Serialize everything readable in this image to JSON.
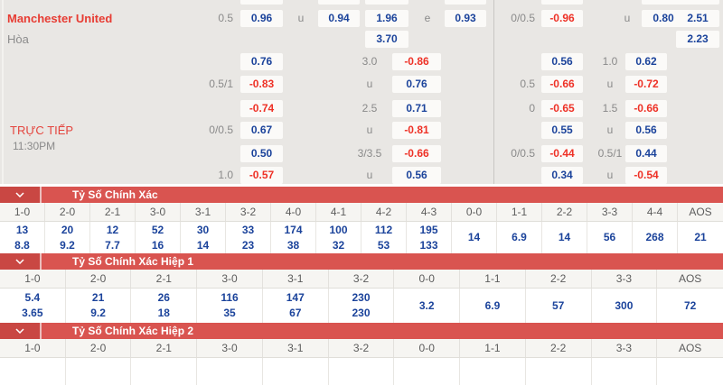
{
  "colors": {
    "background_gray": "#e9e7e4",
    "odds_box_bg": "#fbfaf8",
    "odds_blue": "#1b439b",
    "odds_red": "#ee3126",
    "team_red": "#e73c33",
    "section_bar_red": "#d95450",
    "section_chevron_box_red": "#c94743"
  },
  "match": {
    "home_team": "Manchester United",
    "draw_label": "Hòa",
    "live_label": "TRỰC TIẾP",
    "kickoff_time": "11:30PM"
  },
  "odds": {
    "rows": [
      {
        "cells": [
          {
            "col": "a-box1",
            "text": "",
            "style": "empty"
          },
          {
            "col": "a-box2a",
            "text": "",
            "style": "empty"
          },
          {
            "col": "a-box3",
            "text": "",
            "style": "empty"
          },
          {
            "col": "a-box4",
            "text": "",
            "style": "empty"
          },
          {
            "col": "b-box1",
            "text": "",
            "style": "empty"
          },
          {
            "col": "b-box2a",
            "text": "",
            "style": "empty"
          },
          {
            "col": "b-box3",
            "text": "",
            "style": "empty"
          }
        ]
      },
      {
        "cells": [
          {
            "col": "a-hcap",
            "text": "0.5",
            "style": "label"
          },
          {
            "col": "a-box1",
            "text": "0.96",
            "style": "blue"
          },
          {
            "col": "a-mid1",
            "text": "u",
            "style": "label"
          },
          {
            "col": "a-box2a",
            "text": "0.94",
            "style": "blue"
          },
          {
            "col": "a-box3",
            "text": "1.96",
            "style": "blue"
          },
          {
            "col": "a-mid-e",
            "text": "e",
            "style": "label"
          },
          {
            "col": "a-box4",
            "text": "0.93",
            "style": "blue"
          },
          {
            "col": "b-hcap",
            "text": "0/0.5",
            "style": "label"
          },
          {
            "col": "b-box1",
            "text": "-0.96",
            "style": "red"
          },
          {
            "col": "b-mid1",
            "text": "u",
            "style": "label"
          },
          {
            "col": "b-box2a",
            "text": "0.80",
            "style": "blue"
          },
          {
            "col": "b-box3",
            "text": "2.51",
            "style": "blue"
          }
        ]
      },
      {
        "cells": [
          {
            "col": "a-box3",
            "text": "3.70",
            "style": "blue"
          },
          {
            "col": "b-box3",
            "text": "2.23",
            "style": "blue"
          }
        ]
      },
      {
        "cells": [
          {
            "col": "a-box1",
            "text": "0.76",
            "style": "blue"
          },
          {
            "col": "a-mid2",
            "text": "3.0",
            "style": "label"
          },
          {
            "col": "a-box2b",
            "text": "-0.86",
            "style": "red"
          },
          {
            "col": "b-box1",
            "text": "0.56",
            "style": "blue"
          },
          {
            "col": "b-mid2",
            "text": "1.0",
            "style": "label"
          },
          {
            "col": "b-box2b",
            "text": "0.62",
            "style": "blue"
          }
        ]
      },
      {
        "cells": [
          {
            "col": "a-hcap",
            "text": "0.5/1",
            "style": "label"
          },
          {
            "col": "a-box1",
            "text": "-0.83",
            "style": "red"
          },
          {
            "col": "a-mid2",
            "text": "u",
            "style": "label"
          },
          {
            "col": "a-box2b",
            "text": "0.76",
            "style": "blue"
          },
          {
            "col": "b-hcap",
            "text": "0.5",
            "style": "label"
          },
          {
            "col": "b-box1",
            "text": "-0.66",
            "style": "red"
          },
          {
            "col": "b-mid2",
            "text": "u",
            "style": "label"
          },
          {
            "col": "b-box2b",
            "text": "-0.72",
            "style": "red"
          }
        ]
      },
      {
        "cells": [
          {
            "col": "a-box1",
            "text": "-0.74",
            "style": "red"
          },
          {
            "col": "a-mid2",
            "text": "2.5",
            "style": "label"
          },
          {
            "col": "a-box2b",
            "text": "0.71",
            "style": "blue"
          },
          {
            "col": "b-hcap",
            "text": "0",
            "style": "label"
          },
          {
            "col": "b-box1",
            "text": "-0.65",
            "style": "red"
          },
          {
            "col": "b-mid2",
            "text": "1.5",
            "style": "label"
          },
          {
            "col": "b-box2b",
            "text": "-0.66",
            "style": "red"
          }
        ]
      },
      {
        "cells": [
          {
            "col": "a-hcap",
            "text": "0/0.5",
            "style": "label"
          },
          {
            "col": "a-box1",
            "text": "0.67",
            "style": "blue"
          },
          {
            "col": "a-mid2",
            "text": "u",
            "style": "label"
          },
          {
            "col": "a-box2b",
            "text": "-0.81",
            "style": "red"
          },
          {
            "col": "b-box1",
            "text": "0.55",
            "style": "blue"
          },
          {
            "col": "b-mid2",
            "text": "u",
            "style": "label"
          },
          {
            "col": "b-box2b",
            "text": "0.56",
            "style": "blue"
          }
        ]
      },
      {
        "cells": [
          {
            "col": "a-box1",
            "text": "0.50",
            "style": "blue"
          },
          {
            "col": "a-mid2",
            "text": "3/3.5",
            "style": "label"
          },
          {
            "col": "a-box2b",
            "text": "-0.66",
            "style": "red"
          },
          {
            "col": "b-hcap",
            "text": "0/0.5",
            "style": "label"
          },
          {
            "col": "b-box1",
            "text": "-0.44",
            "style": "red"
          },
          {
            "col": "b-mid2",
            "text": "0.5/1",
            "style": "label"
          },
          {
            "col": "b-box2b",
            "text": "0.44",
            "style": "blue"
          }
        ]
      },
      {
        "cells": [
          {
            "col": "a-hcap",
            "text": "1.0",
            "style": "label"
          },
          {
            "col": "a-box1",
            "text": "-0.57",
            "style": "red"
          },
          {
            "col": "a-mid2",
            "text": "u",
            "style": "label"
          },
          {
            "col": "a-box2b",
            "text": "0.56",
            "style": "blue"
          },
          {
            "col": "b-box1",
            "text": "0.34",
            "style": "blue"
          },
          {
            "col": "b-mid2",
            "text": "u",
            "style": "label"
          },
          {
            "col": "b-box2b",
            "text": "-0.54",
            "style": "red"
          }
        ]
      }
    ]
  },
  "sections": [
    {
      "title": "Tỷ Số Chính Xác",
      "columns": [
        "1-0",
        "2-0",
        "2-1",
        "3-0",
        "3-1",
        "3-2",
        "4-0",
        "4-1",
        "4-2",
        "4-3",
        "0-0",
        "1-1",
        "2-2",
        "3-3",
        "4-4",
        "AOS"
      ],
      "values": [
        [
          "13",
          "8.8"
        ],
        [
          "20",
          "9.2"
        ],
        [
          "12",
          "7.7"
        ],
        [
          "52",
          "16"
        ],
        [
          "30",
          "14"
        ],
        [
          "33",
          "23"
        ],
        [
          "174",
          "38"
        ],
        [
          "100",
          "32"
        ],
        [
          "112",
          "53"
        ],
        [
          "195",
          "133"
        ],
        [
          "14"
        ],
        [
          "6.9"
        ],
        [
          "14"
        ],
        [
          "56"
        ],
        [
          "268"
        ],
        [
          "21"
        ]
      ]
    },
    {
      "title": "Tỷ Số Chính Xác Hiệp 1",
      "columns": [
        "1-0",
        "2-0",
        "2-1",
        "3-0",
        "3-1",
        "3-2",
        "0-0",
        "1-1",
        "2-2",
        "3-3",
        "AOS"
      ],
      "values": [
        [
          "5.4",
          "3.65"
        ],
        [
          "21",
          "9.2"
        ],
        [
          "26",
          "18"
        ],
        [
          "116",
          "35"
        ],
        [
          "147",
          "67"
        ],
        [
          "230",
          "230"
        ],
        [
          "3.2"
        ],
        [
          "6.9"
        ],
        [
          "57"
        ],
        [
          "300"
        ],
        [
          "72"
        ]
      ]
    },
    {
      "title": "Tỷ Số Chính Xác Hiệp 2",
      "columns": [
        "1-0",
        "2-0",
        "2-1",
        "3-0",
        "3-1",
        "3-2",
        "0-0",
        "1-1",
        "2-2",
        "3-3",
        "AOS"
      ],
      "values": []
    }
  ]
}
